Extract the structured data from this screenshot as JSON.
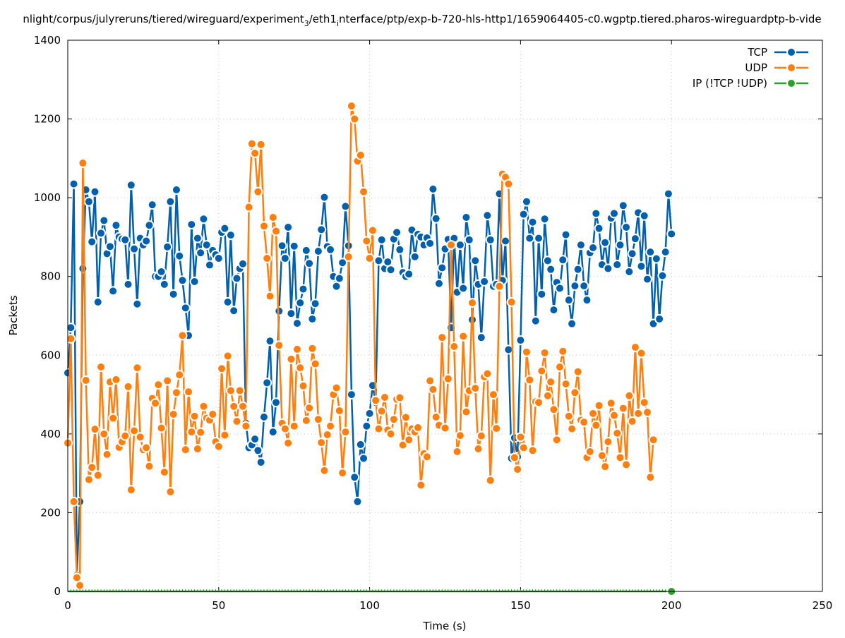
{
  "chart_data": {
    "type": "line",
    "title_parts": [
      "nlight/corpus/julyreruns/tiered/wireguard/experiment",
      "3",
      "/eth1",
      "i",
      "nterface/ptp/exp-b-720-hls-http1/1659064405-c0.wgptp.tiered.pharos-wireguardptp-b-vide"
    ],
    "xlabel": "Time (s)",
    "ylabel": "Packets",
    "xlim": [
      0,
      250
    ],
    "ylim": [
      0,
      1400
    ],
    "xticks": [
      "0",
      "50",
      "100",
      "150",
      "200",
      "250"
    ],
    "yticks": [
      "0",
      "200",
      "400",
      "600",
      "800",
      "1000",
      "1200",
      "1400"
    ],
    "grid": true,
    "legend_position": "top-right",
    "series": [
      {
        "name": "TCP",
        "color": "#0060ad",
        "x_start": 0,
        "x_step": 1,
        "values": [
          555,
          670,
          1035,
          40,
          228,
          820,
          1020,
          990,
          888,
          1015,
          735,
          910,
          942,
          858,
          876,
          763,
          930,
          900,
          895,
          893,
          780,
          1032,
          870,
          730,
          897,
          880,
          890,
          930,
          982,
          800,
          800,
          812,
          780,
          875,
          990,
          755,
          1020,
          852,
          790,
          720,
          650,
          932,
          787,
          897,
          860,
          946,
          880,
          829,
          866,
          855,
          846,
          912,
          922,
          735,
          905,
          713,
          795,
          820,
          832,
          427,
          365,
          372,
          387,
          358,
          328,
          443,
          530,
          636,
          405,
          480,
          712,
          878,
          846,
          925,
          706,
          877,
          681,
          733,
          768,
          866,
          833,
          692,
          731,
          864,
          919,
          1001,
          876,
          868,
          800,
          775,
          795,
          835,
          978,
          878,
          500,
          290,
          228,
          373,
          338,
          420,
          452,
          523,
          480,
          840,
          893,
          820,
          837,
          817,
          895,
          912,
          868,
          810,
          800,
          806,
          918,
          850,
          907,
          900,
          880,
          898,
          884,
          1022,
          947,
          782,
          822,
          870,
          894,
          670,
          897,
          760,
          880,
          770,
          950,
          893,
          690,
          840,
          780,
          645,
          787,
          955,
          893,
          775,
          780,
          1010,
          790,
          890,
          614,
          338,
          390,
          342,
          638,
          958,
          990,
          897,
          938,
          687,
          897,
          755,
          946,
          840,
          818,
          715,
          785,
          770,
          842,
          906,
          740,
          680,
          776,
          818,
          880,
          776,
          740,
          860,
          873,
          960,
          922,
          830,
          886,
          820,
          948,
          960,
          830,
          880,
          980,
          925,
          812,
          858,
          896,
          962,
          826,
          954,
          793,
          862,
          680,
          845,
          692,
          802,
          862,
          1010,
          908
        ]
      },
      {
        "name": "UDP",
        "color": "#ff7f0e",
        "x_start": 0,
        "x_step": 1,
        "values": [
          377,
          642,
          228,
          35,
          15,
          1088,
          536,
          284,
          315,
          412,
          295,
          570,
          400,
          348,
          532,
          440,
          538,
          366,
          380,
          395,
          520,
          258,
          408,
          568,
          392,
          360,
          365,
          318,
          490,
          478,
          525,
          415,
          303,
          535,
          253,
          450,
          505,
          550,
          650,
          360,
          507,
          405,
          445,
          362,
          404,
          470,
          440,
          435,
          450,
          380,
          368,
          566,
          397,
          598,
          510,
          470,
          432,
          510,
          470,
          420,
          976,
          1137,
          1113,
          1015,
          1135,
          928,
          846,
          750,
          950,
          915,
          625,
          427,
          413,
          377,
          590,
          420,
          615,
          568,
          522,
          434,
          466,
          617,
          578,
          437,
          378,
          307,
          398,
          420,
          500,
          517,
          459,
          301,
          405,
          850,
          1233,
          1200,
          1093,
          1108,
          1015,
          890,
          846,
          917,
          485,
          413,
          458,
          493,
          410,
          400,
          437,
          488,
          492,
          372,
          442,
          385,
          413,
          405,
          416,
          270,
          350,
          342,
          535,
          513,
          443,
          422,
          645,
          415,
          540,
          880,
          622,
          355,
          396,
          648,
          456,
          510,
          733,
          516,
          362,
          395,
          545,
          553,
          282,
          500,
          414,
          775,
          1060,
          1052,
          1035,
          735,
          340,
          310,
          392,
          365,
          608,
          537,
          358,
          482,
          480,
          560,
          606,
          497,
          532,
          462,
          385,
          570,
          610,
          527,
          445,
          413,
          505,
          558,
          435,
          430,
          340,
          355,
          452,
          422,
          472,
          345,
          317,
          380,
          478,
          447,
          402,
          340,
          465,
          322,
          497,
          432,
          620,
          452,
          605,
          480,
          455,
          290,
          385
        ]
      },
      {
        "name": "IP (!TCP  !UDP)",
        "color": "#2ca02c",
        "x_start": 0,
        "x_step": 1,
        "constant_value": 0,
        "x_end": 200
      }
    ]
  }
}
